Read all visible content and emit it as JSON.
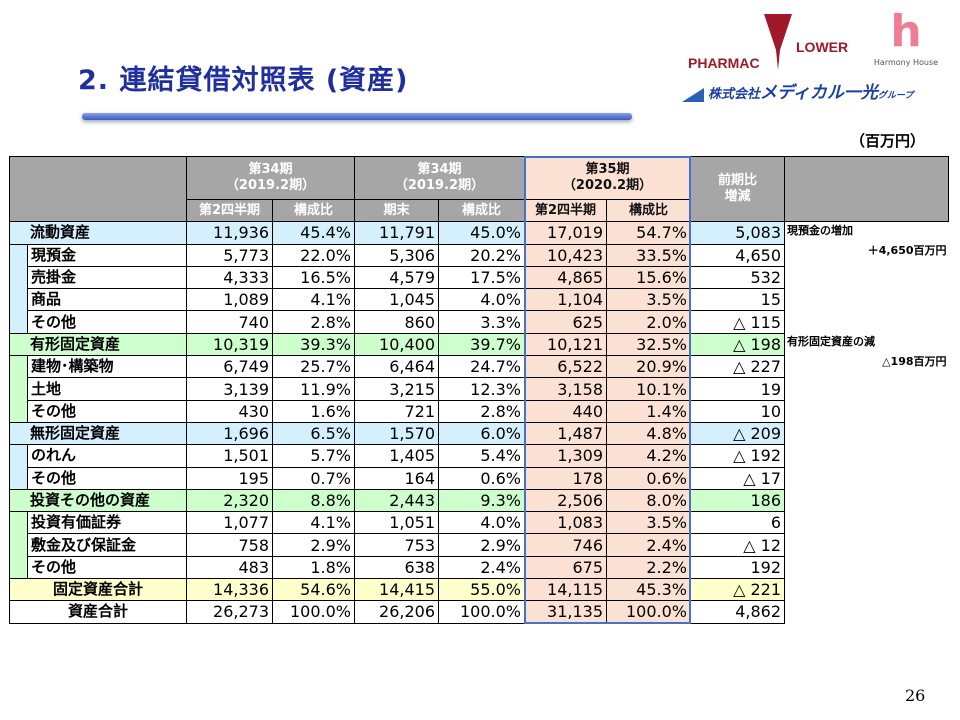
{
  "title": "2. 連結貸借対照表 (資産)",
  "unit": "（百万円）",
  "page_number": "26",
  "logos": {
    "pharmacflower": "PHARMAC FLOWER",
    "harmony": "Harmony House",
    "medical": "株式会社メディカル一光グループ",
    "medical_parts": [
      "株式会社",
      "メディカル一光",
      "グループ"
    ]
  },
  "colors": {
    "header": "#a6a6a6",
    "blue": "#d4f0fc",
    "green": "#ccffcc",
    "yellow": "#ffffcc",
    "p35": "#fbe1d4",
    "frame": "#4472c4",
    "title": "#1f2f9e"
  },
  "header": {
    "p34a": {
      "period": "第34期",
      "year": "（2019.2期）",
      "sub": [
        "第2四半期",
        "構成比"
      ]
    },
    "p34b": {
      "period": "第34期",
      "year": "（2019.2期）",
      "sub": [
        "期末",
        "構成比"
      ]
    },
    "p35": {
      "period": "第35期",
      "year": "（2020.2期）",
      "sub": [
        "第2四半期",
        "構成比"
      ]
    },
    "diff": [
      "前期比",
      "増減"
    ]
  },
  "rows": [
    {
      "label": "流動資産",
      "level": 0,
      "section": "blue",
      "values": [
        "11,936",
        "45.4%",
        "11,791",
        "45.0%",
        "17,019",
        "54.7%",
        "5,083"
      ]
    },
    {
      "label": "現預金",
      "level": 1,
      "section": "blue",
      "values": [
        "5,773",
        "22.0%",
        "5,306",
        "20.2%",
        "10,423",
        "33.5%",
        "4,650"
      ]
    },
    {
      "label": "売掛金",
      "level": 1,
      "section": "blue",
      "values": [
        "4,333",
        "16.5%",
        "4,579",
        "17.5%",
        "4,865",
        "15.6%",
        "532"
      ]
    },
    {
      "label": "商品",
      "level": 1,
      "section": "blue",
      "values": [
        "1,089",
        "4.1%",
        "1,045",
        "4.0%",
        "1,104",
        "3.5%",
        "15"
      ]
    },
    {
      "label": "その他",
      "level": 1,
      "section": "blue",
      "values": [
        "740",
        "2.8%",
        "860",
        "3.3%",
        "625",
        "2.0%",
        "△ 115"
      ]
    },
    {
      "label": "有形固定資産",
      "level": 0,
      "section": "green",
      "values": [
        "10,319",
        "39.3%",
        "10,400",
        "39.7%",
        "10,121",
        "32.5%",
        "△ 198"
      ]
    },
    {
      "label": "建物･構築物",
      "level": 1,
      "section": "green",
      "values": [
        "6,749",
        "25.7%",
        "6,464",
        "24.7%",
        "6,522",
        "20.9%",
        "△ 227"
      ]
    },
    {
      "label": "土地",
      "level": 1,
      "section": "green",
      "values": [
        "3,139",
        "11.9%",
        "3,215",
        "12.3%",
        "3,158",
        "10.1%",
        "19"
      ]
    },
    {
      "label": "その他",
      "level": 1,
      "section": "green",
      "values": [
        "430",
        "1.6%",
        "721",
        "2.8%",
        "440",
        "1.4%",
        "10"
      ]
    },
    {
      "label": "無形固定資産",
      "level": 0,
      "section": "blue",
      "values": [
        "1,696",
        "6.5%",
        "1,570",
        "6.0%",
        "1,487",
        "4.8%",
        "△ 209"
      ]
    },
    {
      "label": "のれん",
      "level": 1,
      "section": "blue",
      "values": [
        "1,501",
        "5.7%",
        "1,405",
        "5.4%",
        "1,309",
        "4.2%",
        "△ 192"
      ]
    },
    {
      "label": "その他",
      "level": 1,
      "section": "blue",
      "values": [
        "195",
        "0.7%",
        "164",
        "0.6%",
        "178",
        "0.6%",
        "△ 17"
      ]
    },
    {
      "label": "投資その他の資産",
      "level": 0,
      "section": "green",
      "values": [
        "2,320",
        "8.8%",
        "2,443",
        "9.3%",
        "2,506",
        "8.0%",
        "186"
      ]
    },
    {
      "label": "投資有価証券",
      "level": 1,
      "section": "green",
      "values": [
        "1,077",
        "4.1%",
        "1,051",
        "4.0%",
        "1,083",
        "3.5%",
        "6"
      ]
    },
    {
      "label": "敷金及び保証金",
      "level": 1,
      "section": "green",
      "values": [
        "758",
        "2.9%",
        "753",
        "2.9%",
        "746",
        "2.4%",
        "△ 12"
      ]
    },
    {
      "label": "その他",
      "level": 1,
      "section": "green",
      "values": [
        "483",
        "1.8%",
        "638",
        "2.4%",
        "675",
        "2.2%",
        "192"
      ]
    },
    {
      "label": "固定資産合計",
      "level": 2,
      "section": "yellow",
      "values": [
        "14,336",
        "54.6%",
        "14,415",
        "55.0%",
        "14,115",
        "45.3%",
        "△ 221"
      ]
    },
    {
      "label": "資産合計",
      "level": 2,
      "section": "white",
      "values": [
        "26,273",
        "100.0%",
        "26,206",
        "100.0%",
        "31,135",
        "100.0%",
        "4,862"
      ]
    }
  ],
  "notes": [
    {
      "row": 0,
      "span": 5,
      "title": "現預金の増加",
      "amount": "＋4,650百万円"
    },
    {
      "row": 5,
      "span": 12,
      "title": "有形固定資産の減",
      "amount": "△198百万円"
    }
  ]
}
